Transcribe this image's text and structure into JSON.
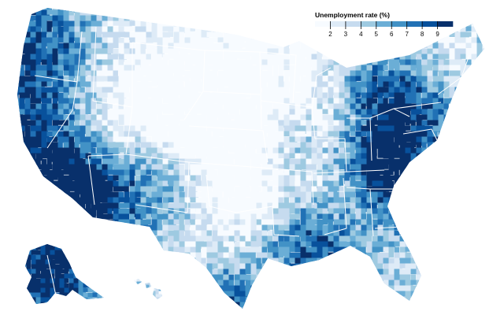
{
  "legend": {
    "title": "Unemployment rate (%)",
    "ticks": [
      "2",
      "3",
      "4",
      "5",
      "6",
      "7",
      "8",
      "9"
    ],
    "domain": [
      1,
      10
    ],
    "colors": [
      "#f7fbff",
      "#deebf7",
      "#c6dbef",
      "#9ecae1",
      "#6baed6",
      "#4292c6",
      "#2171b5",
      "#08519c",
      "#08306b"
    ]
  },
  "map": {
    "projection": "albers-usa",
    "regions": [
      "contiguous-us",
      "alaska",
      "hawaii"
    ],
    "border_color": "#ffffff"
  }
}
